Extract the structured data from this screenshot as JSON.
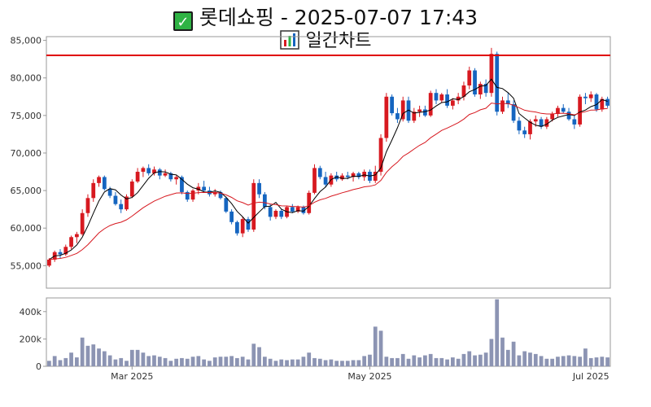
{
  "title": {
    "line1_icon": "check-mark-icon",
    "line1": "롯데쇼핑 - 2025-07-07 17:43",
    "line2_icon": "bar-chart-icon",
    "line2": "일간차트"
  },
  "colors": {
    "up": "#d71920",
    "down": "#1565c0",
    "ma_short": "#000000",
    "ma_long": "#d71920",
    "hline": "#e00000",
    "volume": "#8c94b3"
  },
  "chart_data": {
    "type": "candlestick",
    "price_axis": {
      "ticks": [
        55000,
        60000,
        65000,
        70000,
        75000,
        80000,
        85000
      ],
      "tick_labels": [
        "55,000",
        "60,000",
        "65,000",
        "70,000",
        "75,000",
        "80,000",
        "85,000"
      ],
      "range": [
        52000,
        85500
      ]
    },
    "volume_axis": {
      "ticks": [
        0,
        200000,
        400000
      ],
      "tick_labels": [
        "0",
        "200k",
        "400k"
      ],
      "range": [
        0,
        500000
      ]
    },
    "x_tick_labels": [
      {
        "index": 15,
        "label": "Mar 2025"
      },
      {
        "index": 58,
        "label": "May 2025"
      },
      {
        "index": 98,
        "label": "Jul 2025"
      }
    ],
    "horizontal_line": 83000,
    "ohlc": [
      [
        55000,
        56000,
        54800,
        55800
      ],
      [
        55800,
        57000,
        55500,
        56800
      ],
      [
        56800,
        57200,
        56000,
        56500
      ],
      [
        56500,
        57800,
        56300,
        57500
      ],
      [
        57500,
        59000,
        57200,
        58800
      ],
      [
        58800,
        59500,
        58000,
        59200
      ],
      [
        59200,
        62500,
        59000,
        62000
      ],
      [
        62000,
        64500,
        61500,
        64000
      ],
      [
        64000,
        66500,
        63500,
        66000
      ],
      [
        66000,
        67000,
        65500,
        66800
      ],
      [
        66800,
        67000,
        65000,
        65200
      ],
      [
        65200,
        65500,
        64000,
        64300
      ],
      [
        64300,
        64800,
        63000,
        63200
      ],
      [
        63200,
        63800,
        62000,
        62500
      ],
      [
        62500,
        64500,
        62300,
        64200
      ],
      [
        64200,
        66500,
        64000,
        66200
      ],
      [
        66200,
        68000,
        66000,
        67500
      ],
      [
        67500,
        68200,
        66800,
        68000
      ],
      [
        68000,
        68500,
        67000,
        67300
      ],
      [
        67300,
        68200,
        67000,
        67800
      ],
      [
        67800,
        68000,
        66500,
        67000
      ],
      [
        67000,
        67800,
        66800,
        67300
      ],
      [
        67300,
        67500,
        66200,
        66500
      ],
      [
        66500,
        67000,
        65800,
        66800
      ],
      [
        66800,
        67000,
        64500,
        64800
      ],
      [
        64800,
        65000,
        63500,
        63800
      ],
      [
        63800,
        65200,
        63500,
        65000
      ],
      [
        65000,
        66000,
        64500,
        65500
      ],
      [
        65500,
        66300,
        64800,
        65000
      ],
      [
        65000,
        65500,
        64200,
        64500
      ],
      [
        64500,
        65200,
        64200,
        64800
      ],
      [
        64800,
        65000,
        63800,
        64000
      ],
      [
        64000,
        64200,
        62000,
        62200
      ],
      [
        62200,
        62500,
        60500,
        60800
      ],
      [
        60800,
        61000,
        59000,
        59300
      ],
      [
        59300,
        61500,
        58800,
        61200
      ],
      [
        61200,
        61500,
        59500,
        59800
      ],
      [
        59800,
        66500,
        59500,
        66000
      ],
      [
        66000,
        66500,
        64000,
        64500
      ],
      [
        64500,
        64800,
        62500,
        62800
      ],
      [
        62800,
        63200,
        61000,
        61500
      ],
      [
        61500,
        62500,
        61200,
        62300
      ],
      [
        62300,
        62500,
        61200,
        61500
      ],
      [
        61500,
        63000,
        61300,
        62800
      ],
      [
        62800,
        63200,
        62000,
        62200
      ],
      [
        62200,
        63000,
        62000,
        62800
      ],
      [
        62800,
        63000,
        61800,
        62000
      ],
      [
        62000,
        65000,
        61800,
        64700
      ],
      [
        64700,
        68500,
        64500,
        68000
      ],
      [
        68000,
        68300,
        66500,
        66800
      ],
      [
        66800,
        67500,
        65500,
        65800
      ],
      [
        65800,
        67300,
        65500,
        67000
      ],
      [
        67000,
        67500,
        66200,
        66500
      ],
      [
        66500,
        67300,
        66300,
        67000
      ],
      [
        67000,
        67500,
        66500,
        66800
      ],
      [
        66800,
        67500,
        66200,
        67300
      ],
      [
        67300,
        67500,
        66500,
        66800
      ],
      [
        66800,
        67800,
        66300,
        67500
      ],
      [
        67500,
        67800,
        66000,
        66300
      ],
      [
        66300,
        68300,
        66000,
        67500
      ],
      [
        67500,
        72500,
        67000,
        72000
      ],
      [
        72000,
        78000,
        71500,
        77500
      ],
      [
        77500,
        77800,
        75000,
        75300
      ],
      [
        75300,
        76000,
        74000,
        74500
      ],
      [
        74500,
        77500,
        74200,
        77000
      ],
      [
        77000,
        77500,
        74000,
        74300
      ],
      [
        74300,
        76000,
        74000,
        75500
      ],
      [
        75500,
        76300,
        74800,
        75800
      ],
      [
        75800,
        76300,
        74800,
        75000
      ],
      [
        75000,
        78300,
        74800,
        78000
      ],
      [
        78000,
        78500,
        76500,
        77000
      ],
      [
        77000,
        78000,
        76700,
        77800
      ],
      [
        77800,
        78500,
        76000,
        76300
      ],
      [
        76300,
        77300,
        75800,
        77000
      ],
      [
        77000,
        78000,
        76500,
        77500
      ],
      [
        77500,
        79500,
        77000,
        79000
      ],
      [
        79000,
        81500,
        78500,
        81000
      ],
      [
        81000,
        81300,
        77500,
        77800
      ],
      [
        77800,
        79500,
        77200,
        79200
      ],
      [
        79200,
        79800,
        77500,
        78000
      ],
      [
        78000,
        84000,
        77500,
        83200
      ],
      [
        83200,
        83500,
        75000,
        75500
      ],
      [
        75500,
        77500,
        75200,
        77000
      ],
      [
        77000,
        78000,
        76000,
        76500
      ],
      [
        76500,
        77000,
        74000,
        74300
      ],
      [
        74300,
        74800,
        72500,
        73000
      ],
      [
        73000,
        73500,
        72000,
        72500
      ],
      [
        72500,
        74500,
        71800,
        74200
      ],
      [
        74200,
        75000,
        73500,
        74500
      ],
      [
        74500,
        74800,
        73200,
        73500
      ],
      [
        73500,
        74800,
        73200,
        74500
      ],
      [
        74500,
        75500,
        74200,
        75200
      ],
      [
        75200,
        76300,
        74800,
        76000
      ],
      [
        76000,
        76500,
        75300,
        75500
      ],
      [
        75500,
        76000,
        74300,
        74500
      ],
      [
        74500,
        75000,
        73200,
        73800
      ],
      [
        73800,
        77800,
        73500,
        77500
      ],
      [
        77500,
        78000,
        76500,
        77300
      ],
      [
        77300,
        78200,
        76800,
        77800
      ],
      [
        77800,
        78000,
        75500,
        75800
      ],
      [
        75800,
        77500,
        75500,
        77200
      ],
      [
        77200,
        77500,
        76000,
        76300
      ]
    ],
    "volume": [
      40000,
      75000,
      45000,
      60000,
      100000,
      65000,
      210000,
      150000,
      160000,
      130000,
      110000,
      80000,
      50000,
      60000,
      40000,
      120000,
      120000,
      100000,
      75000,
      80000,
      70000,
      60000,
      40000,
      55000,
      60000,
      55000,
      70000,
      75000,
      50000,
      40000,
      65000,
      70000,
      70000,
      75000,
      60000,
      70000,
      50000,
      165000,
      140000,
      70000,
      55000,
      40000,
      50000,
      45000,
      50000,
      50000,
      70000,
      100000,
      60000,
      55000,
      45000,
      50000,
      40000,
      40000,
      40000,
      45000,
      45000,
      75000,
      85000,
      290000,
      260000,
      70000,
      60000,
      60000,
      90000,
      55000,
      80000,
      65000,
      80000,
      90000,
      60000,
      60000,
      50000,
      65000,
      55000,
      90000,
      110000,
      80000,
      85000,
      100000,
      200000,
      490000,
      210000,
      120000,
      180000,
      80000,
      110000,
      100000,
      90000,
      75000,
      55000,
      55000,
      70000,
      75000,
      80000,
      75000,
      70000,
      130000,
      60000,
      65000,
      70000,
      65000
    ]
  }
}
